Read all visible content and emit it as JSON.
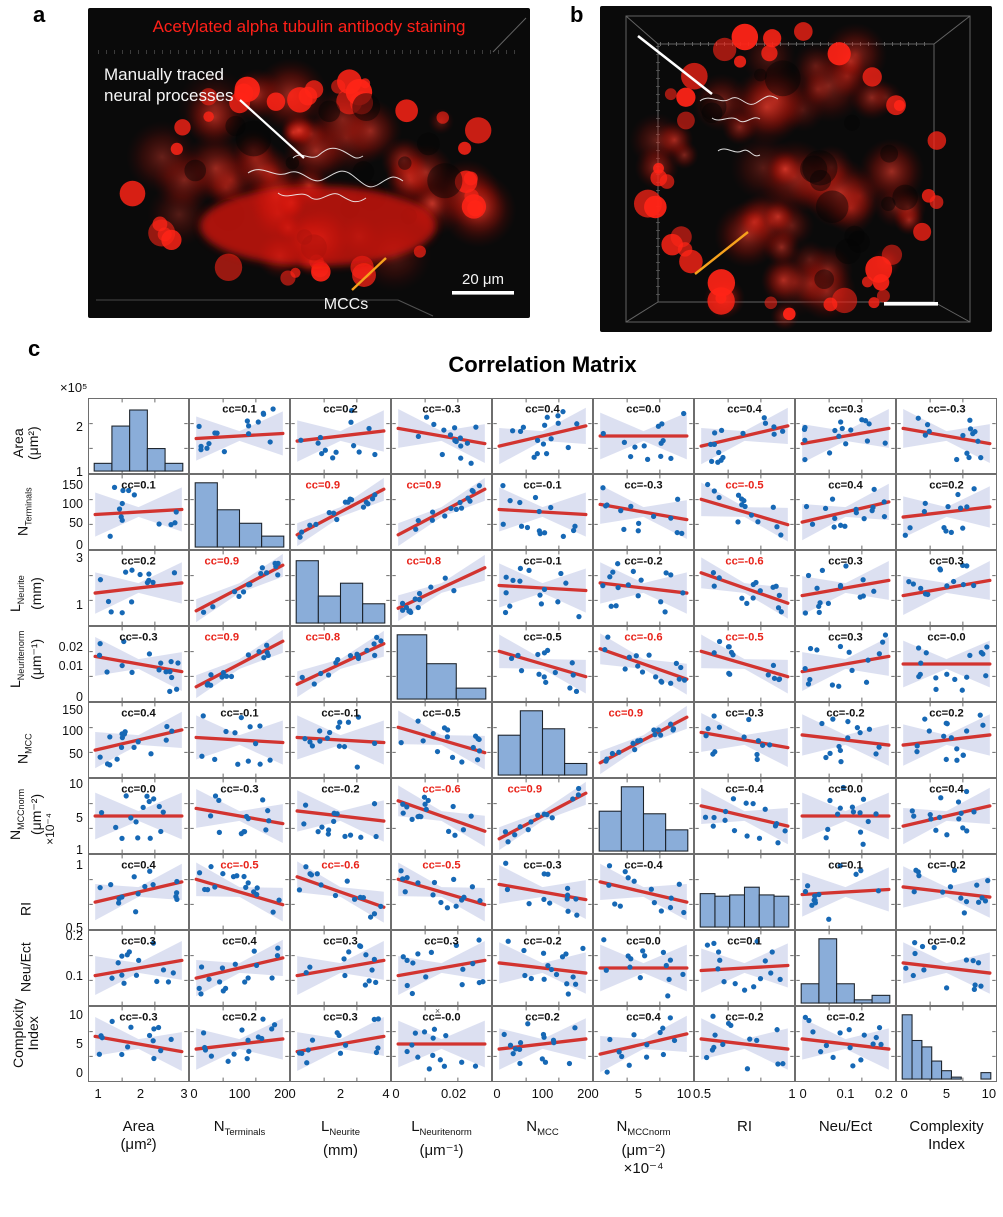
{
  "figure": {
    "panel_a": {
      "label": "a",
      "title": "Acetylated alpha tubulin antibody staining",
      "annotation_line1": "Manually traced",
      "annotation_line2": "neural processes",
      "mcc_label": "MCCs",
      "scale_label": "20 μm"
    },
    "panel_b": {
      "label": "b"
    },
    "panel_c": {
      "label": "c"
    },
    "colors": {
      "red_text": "#ff2019",
      "orange": "#f6a21d",
      "trace_white": "#f2f2f2"
    }
  },
  "chart_data": {
    "type": "scatter-matrix",
    "title": "Correlation Matrix",
    "cc_label_prefix": "cc=",
    "legend_position": "none",
    "grid": false,
    "variables": [
      {
        "label": "Area",
        "sub": "",
        "label2": "",
        "unit": "(μm²)",
        "scale": "×10⁵",
        "row_ticks": [
          [
            "2",
            0.38
          ],
          [
            "1",
            0.97
          ]
        ],
        "col_ticks": [
          [
            "1",
            0.1
          ],
          [
            "2",
            0.52
          ],
          [
            "3",
            0.95
          ]
        ],
        "hist": [
          0.12,
          0.7,
          0.95,
          0.35,
          0.12
        ]
      },
      {
        "label": "N",
        "sub": "Terminals",
        "label2": "",
        "unit": "",
        "scale": "",
        "row_ticks": [
          [
            "150",
            0.15
          ],
          [
            "100",
            0.4
          ],
          [
            "50",
            0.64
          ],
          [
            "0",
            0.93
          ]
        ],
        "col_ticks": [
          [
            "0",
            0.05
          ],
          [
            "100",
            0.5
          ],
          [
            "200",
            0.95
          ]
        ],
        "hist": [
          1.0,
          0.58,
          0.37,
          0.17
        ]
      },
      {
        "label": "L",
        "sub": "Neurite",
        "label2": "",
        "unit": "(mm)",
        "scale": "",
        "row_ticks": [
          [
            "3",
            0.1
          ],
          [
            "1",
            0.72
          ]
        ],
        "col_ticks": [
          [
            "2",
            0.5
          ],
          [
            "4",
            0.95
          ]
        ],
        "hist": [
          0.97,
          0.42,
          0.62,
          0.3
        ]
      },
      {
        "label": "L",
        "sub": "Neuritenorm",
        "label2": "",
        "unit": "(μm⁻¹)",
        "scale": "",
        "row_ticks": [
          [
            "0.02",
            0.28
          ],
          [
            "0.01",
            0.52
          ],
          [
            "0",
            0.93
          ]
        ],
        "col_ticks": [
          [
            "0",
            0.05
          ],
          [
            "0.02",
            0.62
          ]
        ],
        "hist": [
          1.0,
          0.55,
          0.17
        ]
      },
      {
        "label": "N",
        "sub": "MCC",
        "label2": "",
        "unit": "",
        "scale": "",
        "row_ticks": [
          [
            "150",
            0.1
          ],
          [
            "100",
            0.38
          ],
          [
            "50",
            0.68
          ]
        ],
        "col_ticks": [
          [
            "0",
            0.05
          ],
          [
            "100",
            0.5
          ],
          [
            "200",
            0.95
          ]
        ],
        "hist": [
          0.62,
          1.0,
          0.72,
          0.18
        ]
      },
      {
        "label": "N",
        "sub": "MCCnorm",
        "label2": "",
        "unit": "(μm⁻²)",
        "scale": "×10⁻⁴",
        "row_ticks": [
          [
            "10",
            0.08
          ],
          [
            "5",
            0.52
          ],
          [
            "1",
            0.95
          ]
        ],
        "col_ticks": [
          [
            "5",
            0.45
          ],
          [
            "10",
            0.9
          ]
        ],
        "hist": [
          0.62,
          1.0,
          0.58,
          0.33
        ]
      },
      {
        "label": "RI",
        "sub": "",
        "label2": "",
        "unit": "",
        "scale": "",
        "row_ticks": [
          [
            "1",
            0.15
          ],
          [
            "0.5",
            0.97
          ]
        ],
        "col_ticks": [
          [
            "0.5",
            0.08
          ],
          [
            "1",
            0.97
          ]
        ],
        "hist": [
          0.52,
          0.48,
          0.5,
          0.62,
          0.5,
          0.48
        ]
      },
      {
        "label": "Neu/Ect",
        "sub": "",
        "label2": "",
        "unit": "",
        "scale": "",
        "row_ticks": [
          [
            "0.2",
            0.08
          ],
          [
            "0.1",
            0.6
          ]
        ],
        "col_ticks": [
          [
            "0",
            0.08
          ],
          [
            "0.1",
            0.5
          ],
          [
            "0.2",
            0.88
          ]
        ],
        "hist": [
          0.3,
          1.0,
          0.3,
          0.05,
          0.12
        ]
      },
      {
        "label": "Complexity",
        "sub": "",
        "label2": "Index",
        "unit": "",
        "scale": "",
        "row_ticks": [
          [
            "10",
            0.12
          ],
          [
            "5",
            0.5
          ],
          [
            "0",
            0.88
          ]
        ],
        "col_ticks": [
          [
            "0",
            0.08
          ],
          [
            "5",
            0.5
          ],
          [
            "10",
            0.92
          ]
        ],
        "hist": [
          1.0,
          0.6,
          0.5,
          0.28,
          0.13,
          0.03,
          0,
          0,
          0.1
        ]
      }
    ],
    "cc": [
      [
        null,
        "0.1",
        "0.2",
        "-0.3",
        "0.4",
        "0.0",
        "0.4",
        "0.3",
        "-0.3"
      ],
      [
        "0.1",
        null,
        "0.9",
        "0.9",
        "-0.1",
        "-0.3",
        "-0.5",
        "0.4",
        "0.2"
      ],
      [
        "0.2",
        "0.9",
        null,
        "0.8",
        "-0.1",
        "-0.2",
        "-0.6",
        "0.3",
        "0.3"
      ],
      [
        "-0.3",
        "0.9",
        "0.8",
        null,
        "-0.5",
        "-0.6",
        "-0.5",
        "0.3",
        "-0.0"
      ],
      [
        "0.4",
        "-0.1",
        "-0.1",
        "-0.5",
        null,
        "0.9",
        "-0.3",
        "-0.2",
        "0.2"
      ],
      [
        "0.0",
        "-0.3",
        "-0.2",
        "-0.6",
        "0.9",
        null,
        "-0.4",
        "0.0",
        "0.4"
      ],
      [
        "0.4",
        "-0.5",
        "-0.6",
        "-0.5",
        "-0.3",
        "-0.4",
        null,
        "0.1",
        "-0.2"
      ],
      [
        "0.3",
        "0.4",
        "0.3",
        "0.3",
        "-0.2",
        "0.0",
        "0.1",
        null,
        "-0.2"
      ],
      [
        "-0.3",
        "0.2",
        "0.3",
        "-0.0",
        "0.2",
        "0.4",
        "-0.2",
        "-0.2",
        null
      ]
    ],
    "cc_red": [
      [
        false,
        false,
        false,
        false,
        false,
        false,
        false,
        false,
        false
      ],
      [
        false,
        false,
        true,
        true,
        false,
        false,
        true,
        false,
        false
      ],
      [
        false,
        true,
        false,
        true,
        false,
        false,
        true,
        false,
        false
      ],
      [
        false,
        true,
        true,
        false,
        false,
        true,
        true,
        false,
        false
      ],
      [
        false,
        false,
        false,
        false,
        false,
        true,
        false,
        false,
        false
      ],
      [
        false,
        false,
        false,
        true,
        true,
        false,
        false,
        false,
        false
      ],
      [
        false,
        true,
        true,
        true,
        false,
        false,
        false,
        false,
        false
      ],
      [
        false,
        false,
        false,
        false,
        false,
        false,
        false,
        false,
        false
      ],
      [
        false,
        false,
        false,
        false,
        false,
        false,
        false,
        false,
        false
      ]
    ],
    "special_markers": [
      {
        "row": 9,
        "col": 4,
        "symbol": "×"
      }
    ],
    "colors": {
      "point": "#1668b5",
      "line": "#d23430",
      "band": "#c7cde8",
      "hist_fill": "#8aadd9",
      "hist_edge": "#1c232b",
      "cc_red": "#e8231a",
      "cc_black": "#111111",
      "frame": "#6e6e6e"
    }
  }
}
